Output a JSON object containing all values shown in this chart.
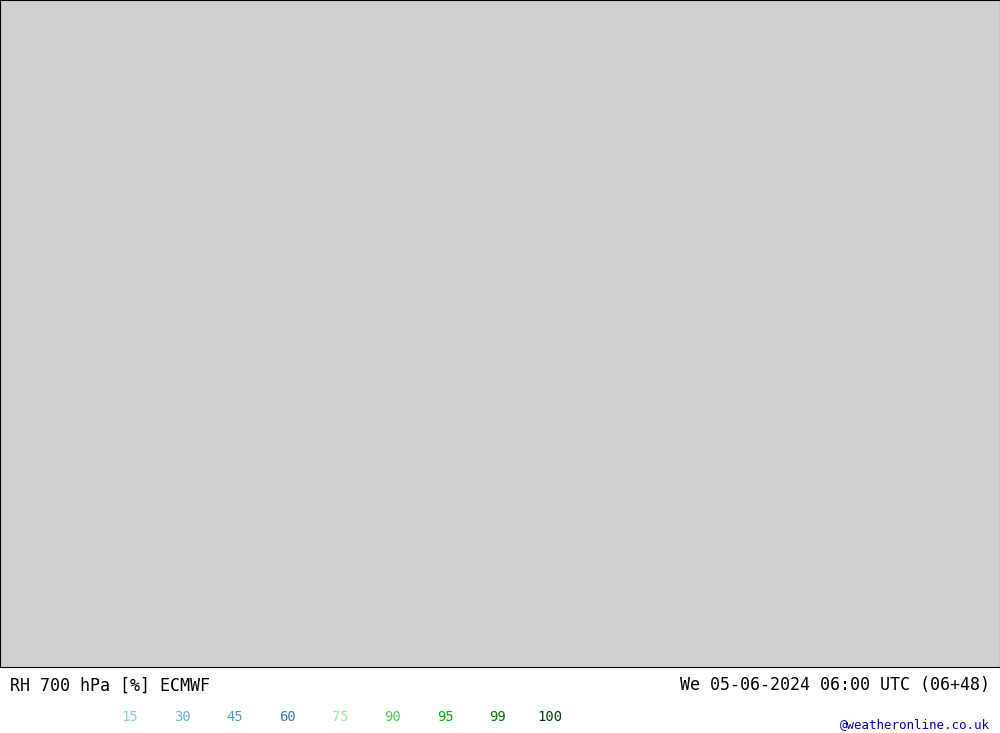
{
  "title_left": "RH 700 hPa [%] ECMWF",
  "title_right": "We 05-06-2024 06:00 UTC (06+48)",
  "credit": "@weatheronline.co.uk",
  "colorbar_values": [
    15,
    30,
    45,
    60,
    75,
    90,
    95,
    99,
    100
  ],
  "colorbar_colors_display": [
    "#87ceeb",
    "#6bb3d8",
    "#4f99c5",
    "#3380b2",
    "#90ee90",
    "#50c850",
    "#00b400",
    "#007800",
    "#004000"
  ],
  "fill_levels": [
    0,
    15,
    30,
    45,
    60,
    75,
    90,
    95,
    99,
    100
  ],
  "fill_colors": [
    "#f0f0f0",
    "#dcdcdc",
    "#c8c8c8",
    "#b4d8f0",
    "#78b8e8",
    "#c8f0a0",
    "#78d050",
    "#20a020",
    "#006400"
  ],
  "contour_levels": [
    15,
    30,
    45,
    60,
    70,
    75,
    80,
    90,
    95
  ],
  "contour_color": "#505050",
  "contour_linewidth": 0.7,
  "border_color": "#00cc00",
  "coast_color": "#404040",
  "label_fontsize": 9,
  "title_fontsize": 12,
  "credit_fontsize": 9,
  "fig_width": 10.0,
  "fig_height": 7.33,
  "dpi": 100,
  "extent": [
    -20,
    60,
    -42,
    42
  ],
  "map_bg": "#d0d0d0"
}
